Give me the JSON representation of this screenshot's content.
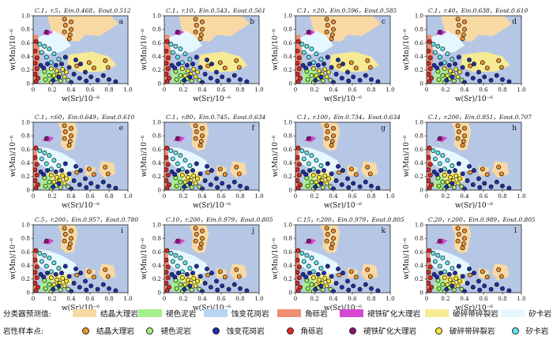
{
  "chart_data": {
    "type": "scatter",
    "xlabel": "w(Sr)/10⁻⁶",
    "ylabel": "w(Mn)/10⁻⁶",
    "xlim": [
      0,
      1.0
    ],
    "ylim": [
      0,
      1.0
    ],
    "xticks": [
      "0",
      "0.2",
      "0.4",
      "0.6",
      "0.8",
      "1.0"
    ],
    "yticks": [
      "0",
      "0.2",
      "0.4",
      "0.6",
      "0.8",
      "1.0"
    ],
    "panels": [
      {
        "letter": "a",
        "title": "C.1，r.5，Ein.0.468，Eout.0.512"
      },
      {
        "letter": "b",
        "title": "C.1，r.10，Ein.0.543，Eout.0.561"
      },
      {
        "letter": "c",
        "title": "C.1，r.20，Ein.0.596，Eout.0.585"
      },
      {
        "letter": "d",
        "title": "C.1，r.40，Ein.0.638，Eout.0.610"
      },
      {
        "letter": "e",
        "title": "C.1，r.60，Ein.0.649，Eout.0.610"
      },
      {
        "letter": "f",
        "title": "C.1，r.80，Ein.0.745，Eout.0.634"
      },
      {
        "letter": "g",
        "title": "C.1，r.100，Ein.0.734，Eout.0.634"
      },
      {
        "letter": "h",
        "title": "C.1，r.200，Ein.0.851，Eout.0.707"
      },
      {
        "letter": "i",
        "title": "C.5，r.200，Ein.0.957，Eout.0.780"
      },
      {
        "letter": "j",
        "title": "C.10，r.200，Ein.0.979，Eout.0.805"
      },
      {
        "letter": "k",
        "title": "C.15，r.200，Ein.0.979，Eout.0.805"
      },
      {
        "letter": "l",
        "title": "C.20，r.200，Ein.0.989，Eout.0.805"
      }
    ],
    "classes": [
      {
        "name": "结晶大理岩",
        "region_color": "#f9d9a3",
        "point_color": "#f0922f"
      },
      {
        "name": "褪色泥岩",
        "region_color": "#a6ef8e",
        "point_color": "#a8f07a"
      },
      {
        "name": "蚀变花岗岩",
        "region_color": "#b7d5f3",
        "point_color": "#1f2ea8"
      },
      {
        "name": "角砾岩",
        "region_color": "#ee8e72",
        "point_color": "#e02727"
      },
      {
        "name": "褪铁矿化大理岩",
        "region_color": "#d649cf",
        "point_color": "#8a1570"
      },
      {
        "name": "破碎带碎裂岩",
        "region_color": "#f6ea94",
        "point_color": "#f6ea34"
      },
      {
        "name": "矽卡岩",
        "region_color": "#e6f8ff",
        "point_color": "#64e4ec"
      }
    ],
    "background_color": "#b6c7e6",
    "samples": [
      {
        "x": 0.33,
        "y": 0.95,
        "cls": 0
      },
      {
        "x": 0.4,
        "y": 0.91,
        "cls": 0
      },
      {
        "x": 0.34,
        "y": 0.86,
        "cls": 0
      },
      {
        "x": 0.4,
        "y": 0.8,
        "cls": 0
      },
      {
        "x": 0.33,
        "y": 0.76,
        "cls": 0
      },
      {
        "x": 0.39,
        "y": 0.72,
        "cls": 0
      },
      {
        "x": 0.38,
        "y": 0.66,
        "cls": 0
      },
      {
        "x": 0.76,
        "y": 0.34,
        "cls": 0
      },
      {
        "x": 0.59,
        "y": 0.31,
        "cls": 0
      },
      {
        "x": 0.79,
        "y": 0.24,
        "cls": 0
      },
      {
        "x": 0.64,
        "y": 0.23,
        "cls": 0
      },
      {
        "x": 0.46,
        "y": 0.26,
        "cls": 0
      },
      {
        "x": 0.14,
        "y": 0.76,
        "cls": 4
      },
      {
        "x": 0.07,
        "y": 0.58,
        "cls": 6
      },
      {
        "x": 0.12,
        "y": 0.55,
        "cls": 6
      },
      {
        "x": 0.17,
        "y": 0.51,
        "cls": 6
      },
      {
        "x": 0.09,
        "y": 0.46,
        "cls": 6
      },
      {
        "x": 0.22,
        "y": 0.44,
        "cls": 6
      },
      {
        "x": 0.14,
        "y": 0.39,
        "cls": 6
      },
      {
        "x": 0.27,
        "y": 0.36,
        "cls": 6
      },
      {
        "x": 0.19,
        "y": 0.31,
        "cls": 6
      },
      {
        "x": 0.03,
        "y": 0.62,
        "cls": 3
      },
      {
        "x": 0.02,
        "y": 0.48,
        "cls": 3
      },
      {
        "x": 0.04,
        "y": 0.38,
        "cls": 3
      },
      {
        "x": 0.02,
        "y": 0.3,
        "cls": 3
      },
      {
        "x": 0.04,
        "y": 0.22,
        "cls": 3
      },
      {
        "x": 0.02,
        "y": 0.14,
        "cls": 3
      },
      {
        "x": 0.05,
        "y": 0.08,
        "cls": 3
      },
      {
        "x": 0.03,
        "y": 0.03,
        "cls": 3
      },
      {
        "x": 0.19,
        "y": 0.22,
        "cls": 5
      },
      {
        "x": 0.25,
        "y": 0.19,
        "cls": 5
      },
      {
        "x": 0.31,
        "y": 0.21,
        "cls": 5
      },
      {
        "x": 0.28,
        "y": 0.14,
        "cls": 5
      },
      {
        "x": 0.35,
        "y": 0.17,
        "cls": 5
      },
      {
        "x": 0.22,
        "y": 0.12,
        "cls": 5
      },
      {
        "x": 0.33,
        "y": 0.1,
        "cls": 5
      },
      {
        "x": 0.12,
        "y": 0.18,
        "cls": 1
      },
      {
        "x": 0.17,
        "y": 0.12,
        "cls": 1
      },
      {
        "x": 0.24,
        "y": 0.07,
        "cls": 1
      },
      {
        "x": 0.29,
        "y": 0.04,
        "cls": 1
      },
      {
        "x": 0.13,
        "y": 0.06,
        "cls": 1
      },
      {
        "x": 0.37,
        "y": 0.05,
        "cls": 1
      },
      {
        "x": 0.19,
        "y": 0.02,
        "cls": 1
      },
      {
        "x": 0.08,
        "y": 0.27,
        "cls": 2
      },
      {
        "x": 0.15,
        "y": 0.29,
        "cls": 2
      },
      {
        "x": 0.11,
        "y": 0.23,
        "cls": 2
      },
      {
        "x": 0.24,
        "y": 0.27,
        "cls": 2
      },
      {
        "x": 0.3,
        "y": 0.29,
        "cls": 2
      },
      {
        "x": 0.38,
        "y": 0.24,
        "cls": 2
      },
      {
        "x": 0.45,
        "y": 0.35,
        "cls": 2
      },
      {
        "x": 0.5,
        "y": 0.29,
        "cls": 2
      },
      {
        "x": 0.43,
        "y": 0.14,
        "cls": 2
      },
      {
        "x": 0.49,
        "y": 0.08,
        "cls": 2
      },
      {
        "x": 0.55,
        "y": 0.17,
        "cls": 2
      },
      {
        "x": 0.61,
        "y": 0.1,
        "cls": 2
      },
      {
        "x": 0.68,
        "y": 0.05,
        "cls": 2
      },
      {
        "x": 0.74,
        "y": 0.12,
        "cls": 2
      },
      {
        "x": 0.8,
        "y": 0.06,
        "cls": 2
      },
      {
        "x": 0.87,
        "y": 0.03,
        "cls": 2
      },
      {
        "x": 0.56,
        "y": 0.04,
        "cls": 2
      },
      {
        "x": 0.34,
        "y": 0.39,
        "cls": 2
      },
      {
        "x": 0.21,
        "y": 0.05,
        "cls": 2
      },
      {
        "x": 0.27,
        "y": 0.1,
        "cls": 2
      },
      {
        "x": 0.4,
        "y": 0.02,
        "cls": 2
      }
    ]
  },
  "legend": {
    "predict_title": "分类器预测值:",
    "sample_title": "岩性样本点:",
    "labels": [
      "结晶大理岩",
      "褪色泥岩",
      "蚀变花岗岩",
      "角砾岩",
      "褪铁矿化大理岩",
      "破碎带碎裂岩",
      "矽卡岩"
    ]
  }
}
